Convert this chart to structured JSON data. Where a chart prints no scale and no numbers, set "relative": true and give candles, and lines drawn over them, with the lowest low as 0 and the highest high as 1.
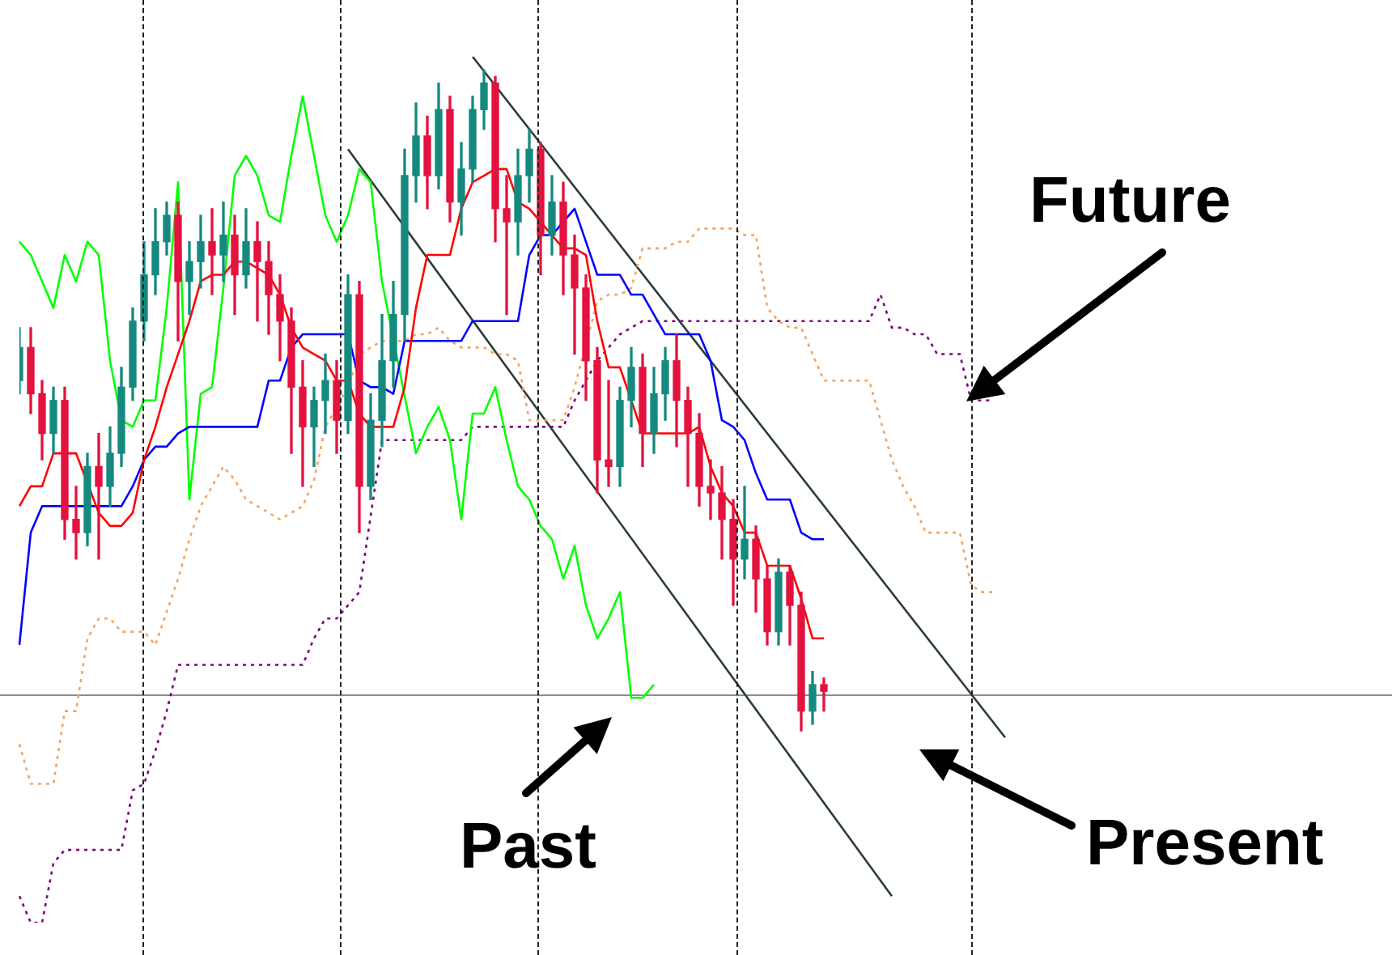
{
  "chart_data": {
    "type": "candlestick",
    "relative": true,
    "categories": [
      null,
      null,
      null,
      null,
      null,
      null,
      null,
      null,
      null,
      null,
      null,
      null,
      null,
      null,
      null,
      null,
      null,
      null,
      null,
      null,
      null,
      null,
      null,
      null,
      null,
      null,
      null,
      null,
      null,
      null,
      null,
      null,
      null,
      null,
      null,
      null,
      null,
      null,
      null,
      null,
      null,
      null,
      null,
      null,
      null,
      null,
      null,
      null,
      null,
      null,
      null,
      null,
      null,
      null,
      null,
      null,
      null,
      null,
      null,
      null,
      null,
      null,
      null,
      null,
      null,
      null,
      null,
      null,
      null,
      null,
      null,
      null,
      null,
      null,
      null,
      null,
      null,
      null,
      null,
      null,
      null,
      null,
      null,
      null,
      null,
      null,
      null,
      null
    ],
    "ohlc": [
      [
        0.53,
        0.61,
        0.51,
        0.58
      ],
      [
        0.58,
        0.61,
        0.48,
        0.51
      ],
      [
        0.51,
        0.53,
        0.41,
        0.45
      ],
      [
        0.45,
        0.52,
        0.42,
        0.5
      ],
      [
        0.5,
        0.52,
        0.29,
        0.32
      ],
      [
        0.32,
        0.37,
        0.26,
        0.3
      ],
      [
        0.3,
        0.42,
        0.28,
        0.4
      ],
      [
        0.4,
        0.45,
        0.26,
        0.37
      ],
      [
        0.37,
        0.46,
        0.34,
        0.42
      ],
      [
        0.42,
        0.55,
        0.4,
        0.52
      ],
      [
        0.52,
        0.64,
        0.5,
        0.62
      ],
      [
        0.62,
        0.74,
        0.59,
        0.69
      ],
      [
        0.69,
        0.79,
        0.66,
        0.74
      ],
      [
        0.74,
        0.8,
        0.72,
        0.78
      ],
      [
        0.78,
        0.8,
        0.59,
        0.68
      ],
      [
        0.68,
        0.74,
        0.63,
        0.71
      ],
      [
        0.71,
        0.78,
        0.67,
        0.74
      ],
      [
        0.74,
        0.79,
        0.66,
        0.72
      ],
      [
        0.72,
        0.8,
        0.68,
        0.75
      ],
      [
        0.75,
        0.78,
        0.63,
        0.69
      ],
      [
        0.69,
        0.79,
        0.67,
        0.74
      ],
      [
        0.74,
        0.77,
        0.62,
        0.71
      ],
      [
        0.71,
        0.74,
        0.6,
        0.66
      ],
      [
        0.66,
        0.69,
        0.56,
        0.62
      ],
      [
        0.62,
        0.64,
        0.42,
        0.52
      ],
      [
        0.52,
        0.56,
        0.37,
        0.46
      ],
      [
        0.46,
        0.52,
        0.4,
        0.5
      ],
      [
        0.5,
        0.57,
        0.45,
        0.53
      ],
      [
        0.53,
        0.56,
        0.42,
        0.47
      ],
      [
        0.47,
        0.69,
        0.45,
        0.66
      ],
      [
        0.66,
        0.68,
        0.3,
        0.37
      ],
      [
        0.37,
        0.51,
        0.35,
        0.47
      ],
      [
        0.47,
        0.63,
        0.43,
        0.56
      ],
      [
        0.56,
        0.68,
        0.52,
        0.63
      ],
      [
        0.63,
        0.88,
        0.59,
        0.84
      ],
      [
        0.84,
        0.95,
        0.8,
        0.9
      ],
      [
        0.9,
        0.93,
        0.79,
        0.84
      ],
      [
        0.84,
        0.98,
        0.82,
        0.94
      ],
      [
        0.94,
        0.96,
        0.77,
        0.8
      ],
      [
        0.8,
        0.89,
        0.75,
        0.85
      ],
      [
        0.85,
        0.96,
        0.83,
        0.94
      ],
      [
        0.94,
        1.0,
        0.91,
        0.98
      ],
      [
        0.98,
        0.99,
        0.74,
        0.79
      ],
      [
        0.79,
        0.84,
        0.63,
        0.77
      ],
      [
        0.77,
        0.88,
        0.72,
        0.84
      ],
      [
        0.84,
        0.91,
        0.8,
        0.88
      ],
      [
        0.88,
        0.89,
        0.69,
        0.75
      ],
      [
        0.75,
        0.84,
        0.72,
        0.8
      ],
      [
        0.8,
        0.83,
        0.66,
        0.72
      ],
      [
        0.72,
        0.75,
        0.57,
        0.67
      ],
      [
        0.67,
        0.69,
        0.5,
        0.56
      ],
      [
        0.56,
        0.58,
        0.36,
        0.41
      ],
      [
        0.41,
        0.53,
        0.37,
        0.4
      ],
      [
        0.4,
        0.52,
        0.37,
        0.5
      ],
      [
        0.5,
        0.58,
        0.46,
        0.55
      ],
      [
        0.55,
        0.57,
        0.4,
        0.45
      ],
      [
        0.45,
        0.55,
        0.42,
        0.51
      ],
      [
        0.51,
        0.58,
        0.47,
        0.56
      ],
      [
        0.56,
        0.6,
        0.43,
        0.5
      ],
      [
        0.5,
        0.52,
        0.37,
        0.45
      ],
      [
        0.45,
        0.48,
        0.34,
        0.37
      ],
      [
        0.37,
        0.41,
        0.32,
        0.36
      ],
      [
        0.36,
        0.4,
        0.26,
        0.32
      ],
      [
        0.32,
        0.35,
        0.19,
        0.26
      ],
      [
        0.26,
        0.37,
        0.23,
        0.29
      ],
      [
        0.29,
        0.31,
        0.18,
        0.23
      ],
      [
        0.23,
        0.25,
        0.13,
        0.15
      ],
      [
        0.15,
        0.26,
        0.13,
        0.24
      ],
      [
        0.24,
        0.25,
        0.13,
        0.19
      ],
      [
        0.19,
        0.21,
        0,
        0.03
      ],
      [
        0.03,
        0.09,
        0.01,
        0.07
      ],
      [
        0.07,
        0.08,
        0.03,
        0.06
      ],
      null,
      null,
      null,
      null,
      null,
      null,
      null,
      null,
      null,
      null,
      null,
      null,
      null,
      null,
      null,
      null
    ],
    "colors": [
      "#16897f",
      "#e3123e",
      "#e3123e",
      "#16897f",
      "#e3123e",
      "#e3123e",
      "#16897f",
      "#e3123e",
      "#16897f",
      "#16897f",
      "#16897f",
      "#16897f",
      "#16897f",
      "#16897f",
      "#e3123e",
      "#16897f",
      "#16897f",
      "#e3123e",
      "#16897f",
      "#e3123e",
      "#16897f",
      "#e3123e",
      "#e3123e",
      "#e3123e",
      "#e3123e",
      "#e3123e",
      "#16897f",
      "#16897f",
      "#e3123e",
      "#16897f",
      "#e3123e",
      "#16897f",
      "#16897f",
      "#16897f",
      "#16897f",
      "#16897f",
      "#e3123e",
      "#16897f",
      "#e3123e",
      "#16897f",
      "#16897f",
      "#16897f",
      "#e3123e",
      "#e3123e",
      "#16897f",
      "#16897f",
      "#e3123e",
      "#16897f",
      "#e3123e",
      "#e3123e",
      "#e3123e",
      "#e3123e",
      "#e3123e",
      "#16897f",
      "#16897f",
      "#e3123e",
      "#16897f",
      "#16897f",
      "#e3123e",
      "#e3123e",
      "#e3123e",
      "#e3123e",
      "#e3123e",
      "#e3123e",
      "#16897f",
      "#e3123e",
      "#e3123e",
      "#16897f",
      "#e3123e",
      "#e3123e",
      "#16897f",
      "#e3123e",
      null,
      null,
      null,
      null,
      null,
      null,
      null,
      null,
      null,
      null,
      null,
      null,
      null,
      null,
      null,
      null
    ],
    "series": [
      {
        "type": "line",
        "color": "#ff0000",
        "values": [
          0.34,
          0.37,
          0.37,
          0.42,
          0.42,
          0.42,
          null,
          0.33,
          0.31,
          0.31,
          0.33,
          0.41,
          0.46,
          0.52,
          0.57,
          0.62,
          0.68,
          0.69,
          0.69,
          0.71,
          0.71,
          0.7,
          0.69,
          0.66,
          0.61,
          0.58,
          0.57,
          0.56,
          0.53,
          0.53,
          0.48,
          0.46,
          0.46,
          0.46,
          0.52,
          0.64,
          0.72,
          0.72,
          0.72,
          0.79,
          0.83,
          0.84,
          0.85,
          0.85,
          0.8,
          0.79,
          0.77,
          0.75,
          0.73,
          0.73,
          0.72,
          0.62,
          0.55,
          0.55,
          null,
          0.45,
          0.45,
          0.45,
          0.45,
          0.45,
          0.46,
          0.4,
          0.36,
          0.34,
          0.3,
          0.3,
          0.25,
          0.25,
          0.25,
          0.2,
          0.14,
          0.14,
          null,
          null,
          null,
          null,
          null,
          null,
          null,
          null,
          null,
          null,
          null,
          null,
          null,
          null,
          null,
          null
        ]
      },
      {
        "type": "line",
        "color": "#0000ff",
        "values": [
          0.13,
          0.3,
          0.34,
          0.34,
          0.34,
          0.34,
          0.34,
          0.34,
          0.34,
          0.34,
          0.37,
          0.41,
          0.43,
          0.43,
          0.45,
          0.46,
          0.46,
          0.46,
          0.46,
          0.46,
          0.46,
          0.46,
          0.53,
          0.53,
          0.58,
          0.6,
          0.6,
          0.6,
          0.6,
          0.6,
          0.53,
          0.52,
          0.52,
          0.51,
          0.59,
          0.59,
          0.59,
          0.59,
          0.59,
          0.59,
          0.62,
          0.62,
          0.62,
          0.62,
          0.62,
          0.72,
          0.75,
          0.75,
          0.77,
          0.79,
          0.74,
          0.69,
          0.69,
          0.69,
          0.66,
          0.66,
          0.63,
          0.6,
          0.6,
          0.6,
          0.6,
          0.56,
          0.47,
          0.46,
          0.44,
          0.39,
          0.35,
          0.35,
          0.35,
          0.3,
          0.29,
          0.29,
          null,
          null,
          null,
          null,
          null,
          null,
          null,
          null,
          null,
          null,
          null,
          null,
          null,
          null,
          null,
          null
        ]
      },
      {
        "type": "line",
        "color": "#00ff00",
        "values": [
          0.74,
          0.72,
          0.68,
          0.64,
          0.72,
          0.68,
          0.74,
          0.72,
          0.56,
          0.47,
          0.46,
          0.5,
          0.5,
          0.64,
          0.83,
          0.35,
          0.51,
          0.52,
          0.67,
          0.84,
          0.87,
          0.84,
          0.78,
          0.77,
          0.87,
          0.96,
          0.87,
          0.78,
          0.74,
          0.78,
          0.85,
          0.83,
          0.68,
          null,
          null,
          0.42,
          0.46,
          0.49,
          0.44,
          0.32,
          0.48,
          0.48,
          0.52,
          0.44,
          0.37,
          0.35,
          0.31,
          0.29,
          0.23,
          0.28,
          0.19,
          0.14,
          0.17,
          0.21,
          0.05,
          0.05,
          0.07,
          null,
          null,
          null,
          null,
          null,
          null,
          null,
          null,
          null,
          null,
          null,
          null,
          null,
          null,
          null,
          null,
          null,
          null,
          null,
          null,
          null,
          null,
          null,
          null,
          null,
          null,
          null,
          null,
          null,
          null,
          null
        ]
      },
      {
        "type": "line",
        "color": "#f4a460",
        "line_style": "dotted",
        "values": [
          -0.02,
          -0.08,
          -0.08,
          -0.08,
          0.03,
          0.03,
          0.14,
          0.17,
          0.17,
          0.15,
          0.15,
          0.15,
          0.13,
          0.18,
          0.23,
          0.29,
          0.34,
          0.37,
          0.4,
          0.38,
          0.35,
          0.34,
          0.33,
          0.32,
          0.33,
          0.34,
          0.38,
          0.46,
          null,
          0.52,
          0.57,
          0.58,
          0.59,
          0.59,
          0.59,
          0.6,
          0.6,
          0.61,
          0.59,
          0.58,
          0.58,
          0.58,
          0.57,
          0.57,
          0.56,
          0.47,
          0.47,
          0.47,
          0.47,
          0.52,
          null,
          0.65,
          0.66,
          0.66,
          0.67,
          0.73,
          0.73,
          0.73,
          0.74,
          0.74,
          0.76,
          0.76,
          0.76,
          0.76,
          0.75,
          0.75,
          0.64,
          0.62,
          0.61,
          0.61,
          0.57,
          0.53,
          0.53,
          0.53,
          0.53,
          0.53,
          0.47,
          0.41,
          0.37,
          0.34,
          0.3,
          0.3,
          0.3,
          0.3,
          0.22,
          0.21,
          0.21,
          null
        ]
      },
      {
        "type": "line",
        "color": "#800080",
        "line_style": "dotted",
        "values": [
          -0.25,
          -0.29,
          -0.29,
          -0.2,
          -0.18,
          -0.18,
          -0.18,
          -0.18,
          -0.18,
          -0.18,
          -0.09,
          -0.08,
          -0.03,
          0.03,
          0.1,
          0.1,
          0.1,
          0.1,
          0.1,
          0.1,
          0.1,
          0.1,
          0.1,
          0.1,
          0.1,
          0.1,
          0.14,
          0.17,
          0.17,
          0.19,
          0.21,
          null,
          0.44,
          0.44,
          0.44,
          0.44,
          0.44,
          0.44,
          0.44,
          0.44,
          0.46,
          0.46,
          0.46,
          0.46,
          0.46,
          0.46,
          0.46,
          0.46,
          0.46,
          0.5,
          0.53,
          0.56,
          0.58,
          0.6,
          0.61,
          0.62,
          0.62,
          0.62,
          0.62,
          0.62,
          0.62,
          0.62,
          0.62,
          0.62,
          0.62,
          0.62,
          0.62,
          0.62,
          0.62,
          0.62,
          0.62,
          0.62,
          0.62,
          0.62,
          0.62,
          0.62,
          0.66,
          0.61,
          0.61,
          0.6,
          0.6,
          0.57,
          0.57,
          0.57,
          0.5,
          0.5,
          0.5,
          null
        ]
      },
      {
        "type": "line",
        "color": "#2b3d38",
        "values": [
          null,
          null,
          null,
          null,
          null,
          null,
          null,
          null,
          null,
          null,
          null,
          null,
          null,
          null,
          null,
          null,
          null,
          null,
          null,
          null,
          null,
          null,
          null,
          null,
          null,
          null,
          null,
          null,
          null,
          null,
          null,
          null,
          null,
          null,
          null,
          null,
          null,
          null,
          null,
          null,
          1.02,
          null,
          null,
          null,
          null,
          null,
          null,
          null,
          null,
          null,
          null,
          null,
          null,
          null,
          null,
          null,
          null,
          null,
          null,
          null,
          null,
          null,
          null,
          null,
          null,
          null,
          null,
          null,
          null,
          null,
          null,
          null,
          null,
          null,
          null,
          null,
          null,
          null,
          null,
          null,
          null,
          null,
          null,
          null,
          null,
          null,
          null,
          -0.01
        ]
      },
      {
        "type": "line",
        "color": "#2b3d38",
        "values": [
          null,
          null,
          null,
          null,
          null,
          null,
          null,
          null,
          null,
          null,
          null,
          null,
          null,
          null,
          null,
          null,
          null,
          null,
          null,
          null,
          null,
          null,
          null,
          null,
          null,
          null,
          null,
          null,
          null,
          0.88,
          null,
          null,
          null,
          null,
          null,
          null,
          null,
          null,
          null,
          null,
          null,
          null,
          null,
          null,
          null,
          null,
          null,
          null,
          null,
          null,
          null,
          null,
          null,
          null,
          null,
          null,
          null,
          null,
          null,
          null,
          null,
          null,
          null,
          null,
          null,
          null,
          null,
          null,
          null,
          null,
          null,
          null,
          null,
          null,
          null,
          null,
          null,
          -0.25,
          null,
          null,
          null,
          null,
          null,
          null,
          null,
          null,
          null,
          null
        ]
      }
    ],
    "ref_lines": [
      {
        "axis": "y",
        "value": 0.054,
        "color": "#8c8c8c"
      }
    ],
    "annotations": [
      "Future",
      "Past",
      "Present"
    ]
  }
}
